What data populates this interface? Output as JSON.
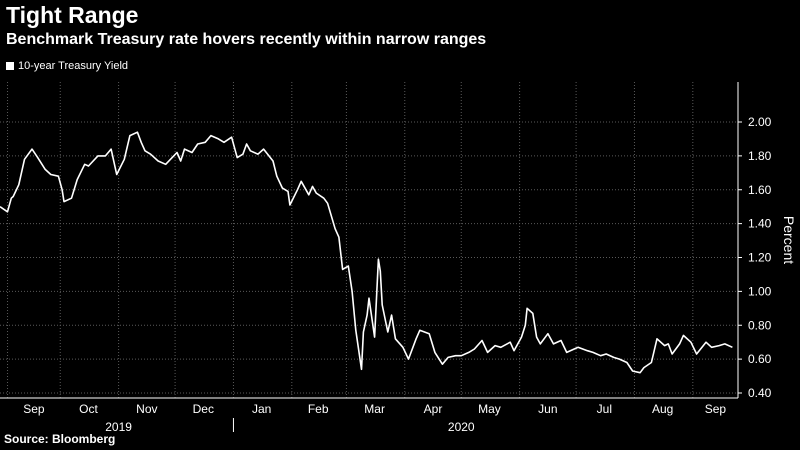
{
  "header": {
    "title": "Tight Range",
    "subtitle": "Benchmark Treasury rate hovers recently within narrow ranges"
  },
  "footer": {
    "source": "Source: Bloomberg"
  },
  "colors": {
    "background": "#000000",
    "line": "#ffffff",
    "grid": "#5a5a5a"
  },
  "chart_data": {
    "type": "line",
    "title": "Tight Range",
    "subtitle": "Benchmark Treasury rate hovers recently within narrow ranges",
    "ylabel": "Percent",
    "ylim": [
      0.4,
      2.0
    ],
    "yticks": [
      "2.00",
      "1.80",
      "1.60",
      "1.40",
      "1.20",
      "1.00",
      "0.80",
      "0.60",
      "0.40"
    ],
    "ytick_values": [
      2.0,
      1.8,
      1.6,
      1.4,
      1.2,
      1.0,
      0.8,
      0.6,
      0.4
    ],
    "xlim": [
      "2019-08-30",
      "2020-09-25"
    ],
    "x_ticks": [
      "Sep",
      "Oct",
      "Nov",
      "Dec",
      "Jan",
      "Feb",
      "Mar",
      "Apr",
      "May",
      "Jun",
      "Jul",
      "Aug",
      "Sep"
    ],
    "x_tick_dates": [
      "2019-09-03",
      "2019-10-01",
      "2019-11-01",
      "2019-12-01",
      "2020-01-01",
      "2020-02-01",
      "2020-03-01",
      "2020-04-01",
      "2020-05-01",
      "2020-06-01",
      "2020-07-01",
      "2020-08-01",
      "2020-09-01"
    ],
    "year_labels": [
      "2019",
      "2020"
    ],
    "year_label_dates": [
      "2019-11-01",
      "2020-05-01"
    ],
    "year_divider_date": "2020-01-01",
    "grid": true,
    "legend": "top-left",
    "series": [
      {
        "name": "10-year Treasury Yield",
        "x": [
          "2019-08-30",
          "2019-09-03",
          "2019-09-05",
          "2019-09-06",
          "2019-09-09",
          "2019-09-12",
          "2019-09-16",
          "2019-09-19",
          "2019-09-23",
          "2019-09-26",
          "2019-09-30",
          "2019-10-02",
          "2019-10-03",
          "2019-10-07",
          "2019-10-10",
          "2019-10-14",
          "2019-10-16",
          "2019-10-21",
          "2019-10-25",
          "2019-10-28",
          "2019-10-31",
          "2019-11-04",
          "2019-11-07",
          "2019-11-11",
          "2019-11-13",
          "2019-11-15",
          "2019-11-18",
          "2019-11-22",
          "2019-11-26",
          "2019-12-02",
          "2019-12-04",
          "2019-12-06",
          "2019-12-10",
          "2019-12-13",
          "2019-12-17",
          "2019-12-20",
          "2019-12-24",
          "2019-12-27",
          "2019-12-31",
          "2020-01-03",
          "2020-01-06",
          "2020-01-08",
          "2020-01-10",
          "2020-01-14",
          "2020-01-17",
          "2020-01-22",
          "2020-01-24",
          "2020-01-27",
          "2020-01-30",
          "2020-01-31",
          "2020-02-04",
          "2020-02-06",
          "2020-02-10",
          "2020-02-12",
          "2020-02-14",
          "2020-02-18",
          "2020-02-20",
          "2020-02-24",
          "2020-02-26",
          "2020-02-28",
          "2020-03-02",
          "2020-03-04",
          "2020-03-06",
          "2020-03-09",
          "2020-03-10",
          "2020-03-12",
          "2020-03-13",
          "2020-03-16",
          "2020-03-18",
          "2020-03-19",
          "2020-03-20",
          "2020-03-23",
          "2020-03-25",
          "2020-03-27",
          "2020-03-31",
          "2020-04-03",
          "2020-04-07",
          "2020-04-09",
          "2020-04-14",
          "2020-04-17",
          "2020-04-21",
          "2020-04-24",
          "2020-04-28",
          "2020-05-01",
          "2020-05-05",
          "2020-05-08",
          "2020-05-12",
          "2020-05-15",
          "2020-05-19",
          "2020-05-22",
          "2020-05-27",
          "2020-05-29",
          "2020-06-02",
          "2020-06-04",
          "2020-06-05",
          "2020-06-08",
          "2020-06-10",
          "2020-06-12",
          "2020-06-16",
          "2020-06-19",
          "2020-06-23",
          "2020-06-26",
          "2020-06-30",
          "2020-07-02",
          "2020-07-07",
          "2020-07-10",
          "2020-07-14",
          "2020-07-17",
          "2020-07-21",
          "2020-07-24",
          "2020-07-28",
          "2020-07-31",
          "2020-08-04",
          "2020-08-06",
          "2020-08-10",
          "2020-08-13",
          "2020-08-17",
          "2020-08-19",
          "2020-08-21",
          "2020-08-25",
          "2020-08-27",
          "2020-08-31",
          "2020-09-03",
          "2020-09-08",
          "2020-09-11",
          "2020-09-15",
          "2020-09-18",
          "2020-09-22"
        ],
        "values": [
          1.5,
          1.47,
          1.55,
          1.56,
          1.63,
          1.78,
          1.84,
          1.79,
          1.72,
          1.69,
          1.68,
          1.6,
          1.53,
          1.55,
          1.66,
          1.75,
          1.74,
          1.8,
          1.8,
          1.84,
          1.69,
          1.78,
          1.92,
          1.94,
          1.88,
          1.83,
          1.81,
          1.77,
          1.75,
          1.82,
          1.77,
          1.84,
          1.82,
          1.87,
          1.88,
          1.92,
          1.9,
          1.88,
          1.91,
          1.79,
          1.81,
          1.87,
          1.83,
          1.81,
          1.84,
          1.77,
          1.68,
          1.61,
          1.59,
          1.51,
          1.6,
          1.65,
          1.57,
          1.62,
          1.58,
          1.55,
          1.52,
          1.37,
          1.32,
          1.13,
          1.15,
          1.0,
          0.77,
          0.54,
          0.76,
          0.86,
          0.96,
          0.73,
          1.19,
          1.12,
          0.92,
          0.76,
          0.86,
          0.72,
          0.67,
          0.6,
          0.72,
          0.77,
          0.75,
          0.64,
          0.57,
          0.61,
          0.62,
          0.62,
          0.64,
          0.66,
          0.71,
          0.64,
          0.68,
          0.67,
          0.7,
          0.65,
          0.73,
          0.8,
          0.9,
          0.87,
          0.73,
          0.69,
          0.75,
          0.69,
          0.71,
          0.64,
          0.66,
          0.67,
          0.65,
          0.64,
          0.62,
          0.63,
          0.61,
          0.6,
          0.58,
          0.53,
          0.52,
          0.55,
          0.58,
          0.72,
          0.68,
          0.69,
          0.63,
          0.69,
          0.74,
          0.7,
          0.63,
          0.7,
          0.67,
          0.68,
          0.69,
          0.67
        ]
      }
    ]
  }
}
